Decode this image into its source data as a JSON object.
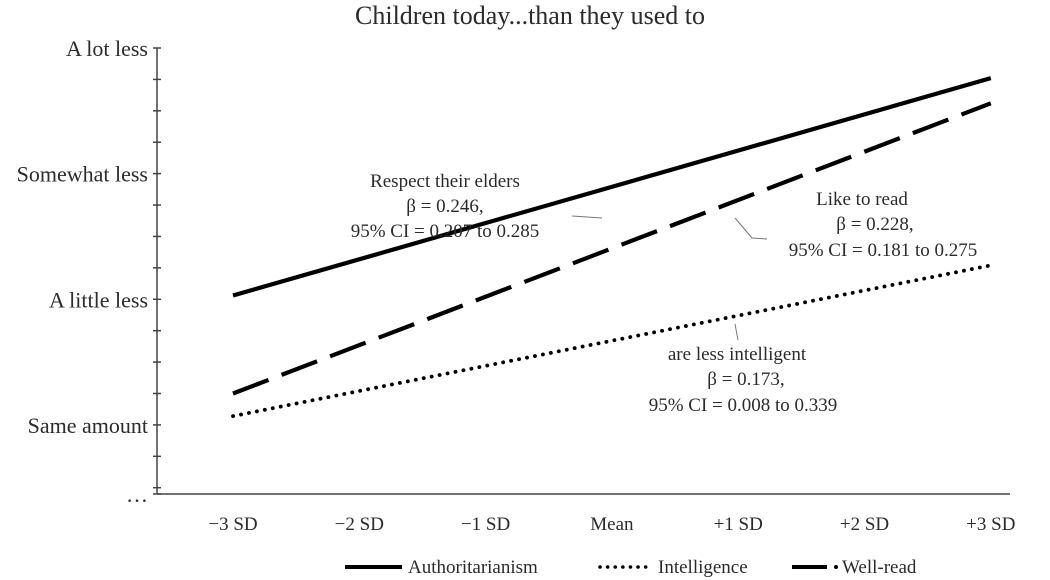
{
  "chart_data": {
    "type": "line",
    "title": "Children today...than they used to",
    "xlabel": "",
    "ylabel": "",
    "categories": [
      "−3 SD",
      "−2 SD",
      "−1 SD",
      "Mean",
      "+1 SD",
      "+2 SD",
      "+3 SD"
    ],
    "x_range": [
      -3,
      3
    ],
    "y_ticks": [
      {
        "value": 4,
        "label": "A lot less"
      },
      {
        "value": 3,
        "label": "Somewhat less"
      },
      {
        "value": 2,
        "label": "A little less"
      },
      {
        "value": 1,
        "label": "Same amount"
      },
      {
        "value": 0.45,
        "label": "…"
      }
    ],
    "ylim": [
      0.45,
      4
    ],
    "series": [
      {
        "name": "Authoritarianism",
        "style": "solid",
        "x": [
          -3,
          3
        ],
        "values": [
          2.03,
          3.76
        ]
      },
      {
        "name": "Intelligence",
        "style": "dotted",
        "x": [
          -3,
          3
        ],
        "values": [
          1.07,
          2.27
        ]
      },
      {
        "name": "Well-read",
        "style": "dashed",
        "x": [
          -3,
          3
        ],
        "values": [
          1.25,
          3.56
        ]
      }
    ],
    "annotations": [
      {
        "series": "Authoritarianism",
        "lines": [
          "Respect their elders",
          "β = 0.246,",
          "95% CI = 0.207 to 0.285"
        ]
      },
      {
        "series": "Well-read",
        "lines": [
          "Like to read",
          "β = 0.228,",
          "95% CI = 0.181 to 0.275"
        ]
      },
      {
        "series": "Intelligence",
        "lines": [
          "are less intelligent",
          "β = 0.173,",
          "95% CI = 0.008 to 0.339"
        ]
      }
    ],
    "legend": {
      "position": "bottom",
      "entries": [
        "Authoritarianism",
        "Intelligence",
        "Well-read"
      ]
    },
    "grid": false
  },
  "colors": {
    "line": "#000000",
    "text": "#2b2b2b",
    "axis": "#444444"
  }
}
